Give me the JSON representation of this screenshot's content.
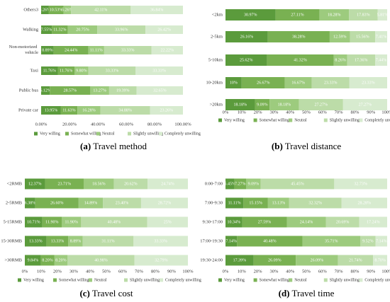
{
  "chart_data": [
    {
      "type": "stacked-barh",
      "panel": "(a)",
      "title": "Travel method",
      "categories": [
        "Others3",
        "Walking",
        "Non-motorized vehicle",
        "Taxi",
        "Public bus",
        "Private car"
      ],
      "series": [
        {
          "name": "Very willing",
          "color": "#5b9b3c",
          "values": [
            5.26,
            7.55,
            8.89,
            11.76,
            6.12,
            13.95
          ],
          "value_labels": [
            "5.26%",
            "7.55%",
            "8.89%",
            "11.76%",
            "6.12%",
            "13.95%"
          ]
        },
        {
          "name": "Somewhat willing",
          "color": "#79b152",
          "values": [
            10.53,
            11.32,
            24.44,
            11.76,
            28.57,
            11.63
          ],
          "value_labels": [
            "10.53%",
            "11.32%",
            "24.44%",
            "11.76%",
            "28.57%",
            "11.63%"
          ]
        },
        {
          "name": "Neutral",
          "color": "#9dcb7e",
          "values": [
            5.26,
            20.75,
            11.11,
            9.8,
            13.27,
            16.28
          ],
          "value_labels": [
            "5.26%",
            "20.75%",
            "11.11%",
            "9.80%",
            "13.27%",
            "16.28%"
          ]
        },
        {
          "name": "Slightly unwilling",
          "color": "#bcdca8",
          "values": [
            42.11,
            33.96,
            33.33,
            33.33,
            19.39,
            34.88
          ],
          "value_labels": [
            "42.11%",
            "33.96%",
            "33.33%",
            "33.33%",
            "19.39%",
            "34.88%"
          ]
        },
        {
          "name": "Completely unwilling",
          "color": "#d7ebcf",
          "values": [
            36.84,
            26.42,
            22.22,
            33.33,
            32.65,
            23.26
          ],
          "value_labels": [
            "36.84%",
            "26.42%",
            "22.22%",
            "33.33%",
            "32.65%",
            "23.26%"
          ]
        }
      ],
      "xlim": [
        0,
        100
      ],
      "xticks": [
        {
          "value": 0,
          "label": "0.00%"
        },
        {
          "value": 20,
          "label": "20.00%"
        },
        {
          "value": 40,
          "label": "40.00%"
        },
        {
          "value": 60,
          "label": "60.00%"
        },
        {
          "value": 80,
          "label": "80.00%"
        },
        {
          "value": 100,
          "label": "100.00%"
        }
      ],
      "legend": "bottom"
    },
    {
      "type": "stacked-barh",
      "panel": "(b)",
      "title": "Travel distance",
      "categories": [
        "<2km",
        "2-5km",
        "5-10km",
        "10-20km",
        ">20km"
      ],
      "series": [
        {
          "name": "Very willing",
          "color": "#5b9b3c",
          "values": [
            30.97,
            26.16,
            25.62,
            10,
            18.18
          ],
          "value_labels": [
            "30.97%",
            "26.16%",
            "25.62%",
            "10%",
            "18.18%"
          ]
        },
        {
          "name": "Somewhat willing",
          "color": "#79b152",
          "values": [
            27.11,
            38.28,
            41.32,
            26.67,
            9.09
          ],
          "value_labels": [
            "27.11%",
            "38.28%",
            "41.32%",
            "26.67%",
            "9.09%"
          ]
        },
        {
          "name": "Neutral",
          "color": "#9dcb7e",
          "values": [
            18.28,
            12.59,
            8.26,
            16.67,
            18.18
          ],
          "value_labels": [
            "18.28%",
            "12.59%",
            "8.26%",
            "16.67%",
            "18.18%"
          ]
        },
        {
          "name": "Slightly unwilling",
          "color": "#bcdca8",
          "values": [
            17.83,
            15.56,
            17.36,
            23.33,
            27.27
          ],
          "value_labels": [
            "17.83%",
            "15.56%",
            "17.36%",
            "23.33%",
            "27.27%"
          ]
        },
        {
          "name": "Completely unwilling",
          "color": "#d7ebcf",
          "values": [
            5.81,
            7.41,
            7.44,
            23.33,
            27.27
          ],
          "value_labels": [
            "5.81%",
            "7.41%",
            "7.44%",
            "23.33%",
            "27.27%"
          ]
        }
      ],
      "xlim": [
        0,
        100
      ],
      "xticks": [
        {
          "value": 0,
          "label": "0%"
        },
        {
          "value": 10,
          "label": "10%"
        },
        {
          "value": 20,
          "label": "20%"
        },
        {
          "value": 30,
          "label": "30%"
        },
        {
          "value": 40,
          "label": "40%"
        },
        {
          "value": 50,
          "label": "50%"
        },
        {
          "value": 60,
          "label": "60%"
        },
        {
          "value": 70,
          "label": "70%"
        },
        {
          "value": 80,
          "label": "80%"
        },
        {
          "value": 90,
          "label": "90%"
        },
        {
          "value": 100,
          "label": "100%"
        }
      ],
      "legend": "bottom"
    },
    {
      "type": "stacked-barh",
      "panel": "(c)",
      "title": "Travel cost",
      "categories": [
        "<2RMB",
        "2-5RMB",
        "5-15RMB",
        "15-30RMB",
        ">30RMB"
      ],
      "series": [
        {
          "name": "Very willing",
          "color": "#5b9b3c",
          "values": [
            12.37,
            6.38,
            10.71,
            13.33,
            9.84
          ],
          "value_labels": [
            "12.37%",
            "6.38%",
            "10.71%",
            "13.33%",
            "9.84%"
          ]
        },
        {
          "name": "Somewhat willing",
          "color": "#79b152",
          "values": [
            23.71,
            26.6,
            11.9,
            13.33,
            8.2
          ],
          "value_labels": [
            "23.71%",
            "26.60%",
            "11.90%",
            "13.33%",
            "8.20%"
          ]
        },
        {
          "name": "Neutral",
          "color": "#9dcb7e",
          "values": [
            18.56,
            14.89,
            11.9,
            8.89,
            8.2
          ],
          "value_labels": [
            "18.56%",
            "14.89%",
            "11.90%",
            "8.89%",
            "8.20%"
          ]
        },
        {
          "name": "Slightly unwilling",
          "color": "#bcdca8",
          "values": [
            20.62,
            23.4,
            40.48,
            31.11,
            40.98
          ],
          "value_labels": [
            "20.62%",
            "23.40%",
            "40.48%",
            "31.11%",
            "40.98%"
          ]
        },
        {
          "name": "Completely unwilling",
          "color": "#d7ebcf",
          "values": [
            24.74,
            28.72,
            25,
            33.33,
            32.79
          ],
          "value_labels": [
            "24.74%",
            "28.72%",
            "25%",
            "33.33%",
            "32.79%"
          ]
        }
      ],
      "xlim": [
        0,
        100
      ],
      "xticks": [
        {
          "value": 0,
          "label": "0%"
        },
        {
          "value": 10,
          "label": "10%"
        },
        {
          "value": 20,
          "label": "20%"
        },
        {
          "value": 30,
          "label": "30%"
        },
        {
          "value": 40,
          "label": "40%"
        },
        {
          "value": 50,
          "label": "50%"
        },
        {
          "value": 60,
          "label": "60%"
        },
        {
          "value": 70,
          "label": "70%"
        },
        {
          "value": 80,
          "label": "80%"
        },
        {
          "value": 90,
          "label": "90%"
        },
        {
          "value": 100,
          "label": "100%"
        }
      ],
      "legend": "bottom"
    },
    {
      "type": "stacked-barh",
      "panel": "(d)",
      "title": "Travel time",
      "categories": [
        "0:00-7:00",
        "7:00-9:30",
        "9:30-17:00",
        "17:00-19:30",
        "19:30-24:00"
      ],
      "series": [
        {
          "name": "Very willing",
          "color": "#5b9b3c",
          "values": [
            5.45,
            11.11,
            10.34,
            7.14,
            17.39
          ],
          "value_labels": [
            "5.45%",
            "11.11%",
            "10.34%",
            "7.14%",
            "17.39%"
          ]
        },
        {
          "name": "Somewhat willing",
          "color": "#79b152",
          "values": [
            7.27,
            15.15,
            27.59,
            40.48,
            26.09
          ],
          "value_labels": [
            "7.27%",
            "15.15%",
            "27.59%",
            "40.48%",
            "26.09%"
          ]
        },
        {
          "name": "Neutral",
          "color": "#9dcb7e",
          "values": [
            9.09,
            13.13,
            24.14,
            35.71,
            26.09
          ],
          "value_labels": [
            "9.09%",
            "13.13%",
            "24.14%",
            "35.71%",
            "26.09%"
          ]
        },
        {
          "name": "Slightly unwilling",
          "color": "#bcdca8",
          "values": [
            45.45,
            32.32,
            20.69,
            9.52,
            21.74
          ],
          "value_labels": [
            "45.45%",
            "32.32%",
            "20.69%",
            "9.52%",
            "21.74%"
          ]
        },
        {
          "name": "Completely unwilling",
          "color": "#d7ebcf",
          "values": [
            32.73,
            28.28,
            17.24,
            7.14,
            8.7
          ],
          "value_labels": [
            "32.73%",
            "28.28%",
            "17.24%",
            "7.14%",
            "8.70%"
          ]
        }
      ],
      "xlim": [
        0,
        100
      ],
      "xticks": [
        {
          "value": 0,
          "label": "0%"
        },
        {
          "value": 10,
          "label": "10%"
        },
        {
          "value": 20,
          "label": "20%"
        },
        {
          "value": 30,
          "label": "30%"
        },
        {
          "value": 40,
          "label": "40%"
        },
        {
          "value": 50,
          "label": "50%"
        },
        {
          "value": 60,
          "label": "60%"
        },
        {
          "value": 70,
          "label": "70%"
        },
        {
          "value": 80,
          "label": "80%"
        },
        {
          "value": 90,
          "label": "90%"
        },
        {
          "value": 100,
          "label": "100%"
        }
      ],
      "legend": "bottom"
    }
  ]
}
